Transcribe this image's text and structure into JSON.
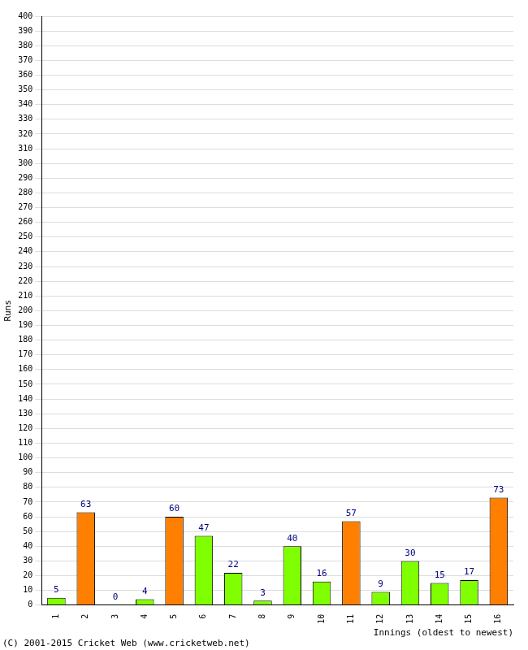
{
  "chart_data": {
    "type": "bar",
    "y_label": "Runs",
    "x_label": "Innings (oldest to newest)",
    "annotations": [
      "(C) 2001-2015 Cricket Web (www.cricketweb.net)"
    ],
    "categories": [
      "1",
      "2",
      "3",
      "4",
      "5",
      "6",
      "7",
      "8",
      "9",
      "10",
      "11",
      "12",
      "13",
      "14",
      "15",
      "16"
    ],
    "values": [
      5,
      63,
      0,
      4,
      60,
      47,
      22,
      3,
      40,
      16,
      57,
      9,
      30,
      15,
      17,
      73
    ],
    "colors": [
      "#80ff00",
      "#ff8000",
      "#80ff00",
      "#80ff00",
      "#ff8000",
      "#80ff00",
      "#80ff00",
      "#80ff00",
      "#80ff00",
      "#80ff00",
      "#ff8000",
      "#80ff00",
      "#80ff00",
      "#80ff00",
      "#80ff00",
      "#ff8000"
    ],
    "ylim": [
      0,
      400
    ],
    "yticks": [
      0,
      10,
      20,
      30,
      40,
      50,
      60,
      70,
      80,
      90,
      100,
      110,
      120,
      130,
      140,
      150,
      160,
      170,
      180,
      190,
      200,
      210,
      220,
      230,
      240,
      250,
      260,
      270,
      280,
      290,
      300,
      310,
      320,
      330,
      340,
      350,
      360,
      370,
      380,
      390,
      400
    ],
    "grid": true,
    "data_labels": true
  }
}
